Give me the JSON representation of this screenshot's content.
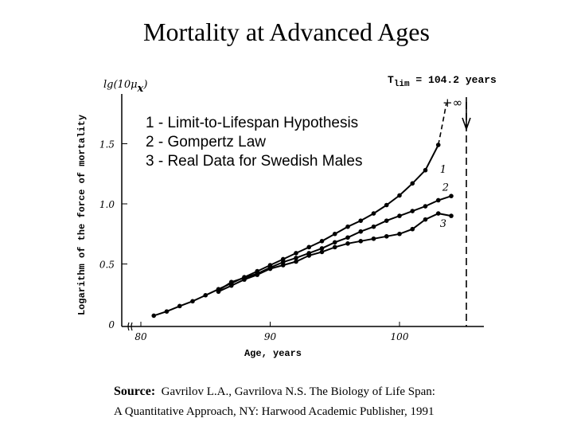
{
  "page": {
    "title": "Mortality at Advanced Ages",
    "source_label": "Source:",
    "source_line1": "Gavrilov L.A., Gavrilova N.S. The Biology of Life Span:",
    "source_line2": "A Quantitative Approach, NY: Harwood Academic Publisher, 1991"
  },
  "chart_data": {
    "type": "line",
    "title": "Mortality at Advanced Ages",
    "xlabel": "Age, years",
    "ylabel": "Logarithm of the force of mortality",
    "ylabel_top": "lg(10μ",
    "ylabel_top_sub": "x",
    "ylabel_top_close": ")",
    "xlim": [
      78,
      106
    ],
    "ylim": [
      0,
      1.8
    ],
    "xticks": [
      80,
      90,
      100
    ],
    "xtick_labels": [
      "80",
      "90",
      "100"
    ],
    "yticks": [
      0,
      0.5,
      1.0,
      1.5
    ],
    "ytick_labels": [
      "0",
      "0.5",
      "1.0",
      "1.5"
    ],
    "grid": false,
    "legend": [
      "1 - Limit-to-Lifespan Hypothesis",
      "2 - Gompertz Law",
      "3 - Real Data for Swedish Males"
    ],
    "legend_position": "top-left",
    "annotation_tlim": {
      "label": "T",
      "sub": "lim",
      "rest": " = 104.2 years",
      "age": 104.2
    },
    "annotation_infinity": "+∞",
    "series": [
      {
        "name": "1",
        "label": "1",
        "x": [
          81,
          82,
          83,
          84,
          85,
          86,
          87,
          88,
          89,
          90,
          91,
          92,
          93,
          94,
          95,
          96,
          97,
          98,
          99,
          100,
          101,
          102,
          103
        ],
        "y": [
          0.07,
          0.105,
          0.15,
          0.19,
          0.24,
          0.29,
          0.34,
          0.39,
          0.44,
          0.49,
          0.54,
          0.59,
          0.64,
          0.69,
          0.75,
          0.81,
          0.86,
          0.92,
          0.99,
          1.07,
          1.17,
          1.28,
          1.49
        ]
      },
      {
        "name": "2",
        "label": "2",
        "x": [
          86,
          87,
          88,
          89,
          90,
          91,
          92,
          93,
          94,
          95,
          96,
          97,
          98,
          99,
          100,
          101,
          102,
          103,
          104
        ],
        "y": [
          0.28,
          0.35,
          0.385,
          0.42,
          0.47,
          0.515,
          0.55,
          0.59,
          0.63,
          0.68,
          0.72,
          0.77,
          0.81,
          0.86,
          0.9,
          0.94,
          0.98,
          1.03,
          1.065
        ]
      },
      {
        "name": "3",
        "label": "3",
        "x": [
          86,
          87,
          88,
          89,
          90,
          91,
          92,
          93,
          94,
          95,
          96,
          97,
          98,
          99,
          100,
          101,
          102,
          103,
          104
        ],
        "y": [
          0.27,
          0.32,
          0.37,
          0.41,
          0.46,
          0.49,
          0.52,
          0.57,
          0.6,
          0.64,
          0.67,
          0.69,
          0.71,
          0.73,
          0.75,
          0.79,
          0.87,
          0.92,
          0.9
        ]
      }
    ]
  }
}
